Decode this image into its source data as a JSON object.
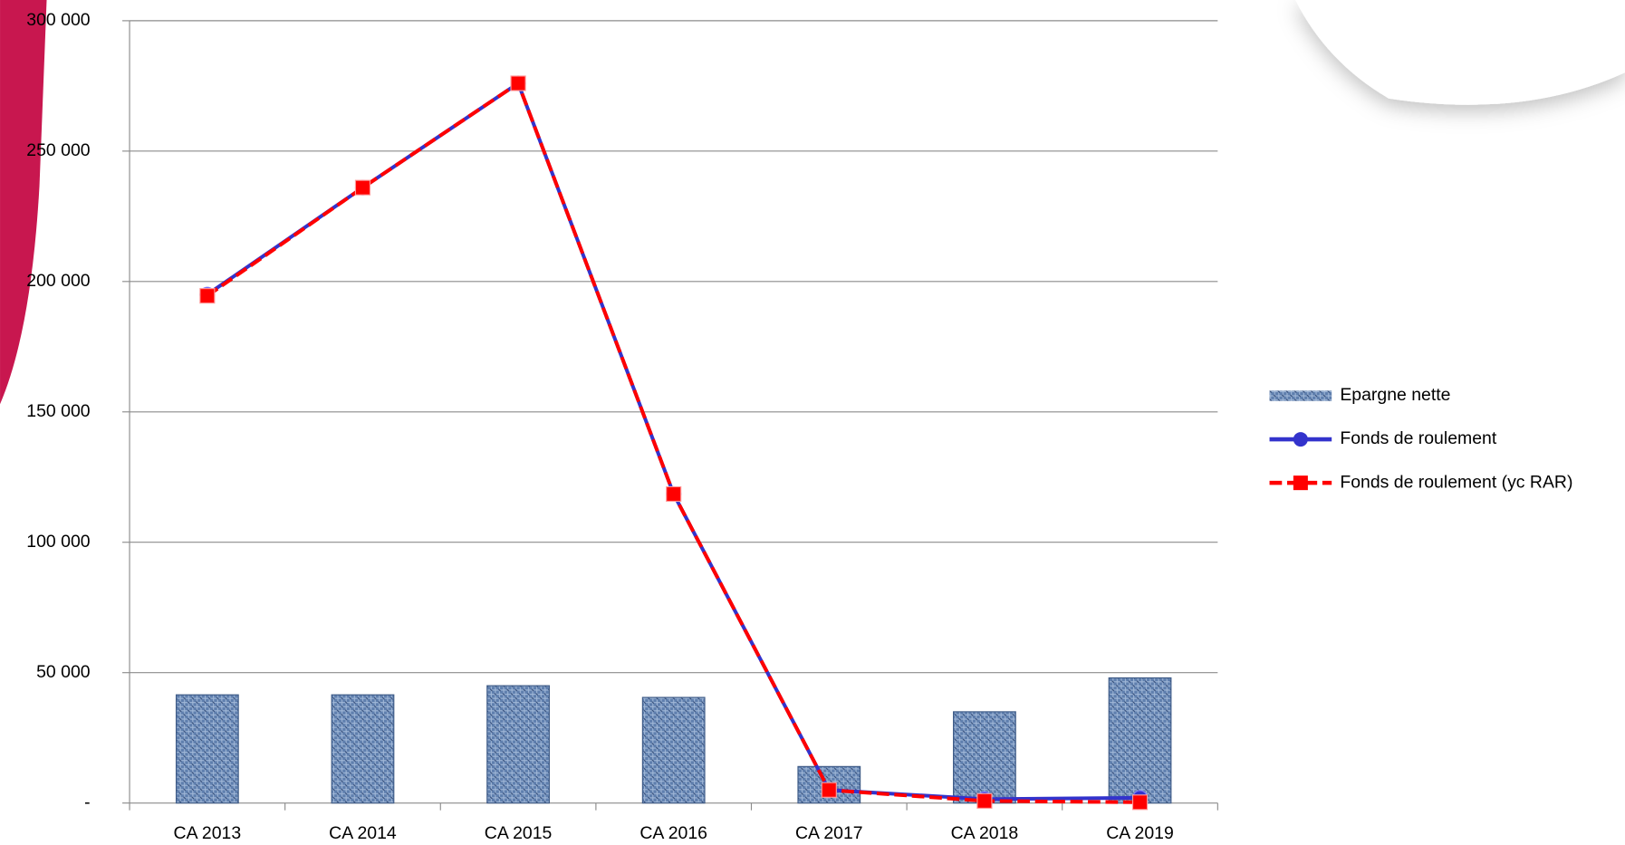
{
  "chart_data": {
    "type": "combo",
    "categories": [
      "CA 2013",
      "CA 2014",
      "CA 2015",
      "CA 2016",
      "CA 2017",
      "CA 2018",
      "CA 2019"
    ],
    "series": [
      {
        "name": "Epargne nette",
        "type": "bar",
        "color": "#5f7fae",
        "values": [
          41500,
          41500,
          45000,
          40500,
          14000,
          35000,
          48000
        ]
      },
      {
        "name": "Fonds de roulement",
        "type": "line",
        "marker": "circle",
        "dashed": false,
        "color": "#3333cc",
        "values": [
          195000,
          236000,
          276000,
          118500,
          5000,
          1500,
          2000
        ]
      },
      {
        "name": "Fonds de roulement (yc RAR)",
        "type": "line",
        "marker": "square",
        "dashed": true,
        "color": "#ff0000",
        "values": [
          194500,
          236000,
          276000,
          118500,
          5000,
          800,
          300
        ]
      }
    ],
    "ylim": [
      0,
      300000
    ],
    "yticks": [
      {
        "value": 0,
        "label": "-"
      },
      {
        "value": 50000,
        "label": "50 000"
      },
      {
        "value": 100000,
        "label": "100 000"
      },
      {
        "value": 150000,
        "label": "150 000"
      },
      {
        "value": 200000,
        "label": "200 000"
      },
      {
        "value": 250000,
        "label": "250 000"
      },
      {
        "value": 300000,
        "label": "300 000"
      }
    ],
    "grid": true,
    "legend": "right"
  }
}
